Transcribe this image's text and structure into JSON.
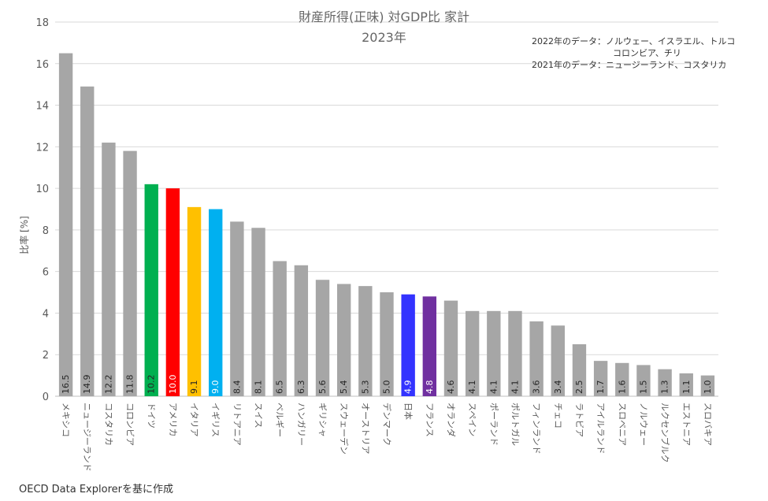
{
  "title_line1": "財産所得(正味) 対GDP比 家計",
  "title_line2": "2023年",
  "notes": {
    "line1_prefix": "2022年のデータ：",
    "line1_countries": "ノルウェー、イスラエル、トルコ",
    "line1_continued": "コロンビア、チリ",
    "line2": "2021年のデータ：ニュージーランド、コスタリカ"
  },
  "source": "OECD Data Explorerを基に作成",
  "chart_data": {
    "type": "bar",
    "ylabel": "比率 [%]",
    "ylim": [
      0,
      18
    ],
    "yticks": [
      0,
      2,
      4,
      6,
      8,
      10,
      12,
      14,
      16,
      18
    ],
    "grid": true,
    "categories": [
      "メキシコ",
      "ニュージーランド",
      "コスタリカ",
      "コロンビア",
      "ドイツ",
      "アメリカ",
      "イタリア",
      "イギリス",
      "リトアニア",
      "スイス",
      "ベルギー",
      "ハンガリー",
      "ギリシャ",
      "スウェーデン",
      "オーストリア",
      "デンマーク",
      "日本",
      "フランス",
      "オランダ",
      "スペイン",
      "ポーランド",
      "ポルトガル",
      "フィンランド",
      "チェコ",
      "ラトビア",
      "アイルランド",
      "スロベニア",
      "ノルウェー",
      "ルクセンブルク",
      "エストニア",
      "スロバキア"
    ],
    "values": [
      16.5,
      14.9,
      12.2,
      11.8,
      10.2,
      10.0,
      9.1,
      9.0,
      8.4,
      8.1,
      6.5,
      6.3,
      5.6,
      5.4,
      5.3,
      5.0,
      4.9,
      4.8,
      4.6,
      4.1,
      4.1,
      4.1,
      3.6,
      3.4,
      2.5,
      1.7,
      1.6,
      1.5,
      1.3,
      1.1,
      1.0
    ],
    "value_labels": [
      "16.5",
      "14.9",
      "12.2",
      "11.8",
      "10.2",
      "10.0",
      "9.1",
      "9.0",
      "8.4",
      "8.1",
      "6.5",
      "6.3",
      "5.6",
      "5.4",
      "5.3",
      "5.0",
      "4.9",
      "4.8",
      "4.6",
      "4.1",
      "4.1",
      "4.1",
      "3.6",
      "3.4",
      "2.5",
      "1.7",
      "1.6",
      "1.5",
      "1.3",
      "1.1",
      "1.0"
    ],
    "colors": {
      "default": "#a6a6a6",
      "ドイツ": "#00b050",
      "アメリカ": "#ff0000",
      "イタリア": "#ffc000",
      "イギリス": "#00b0f0",
      "日本": "#3333ff",
      "フランス": "#7030a0"
    },
    "white_label_categories": [
      "アメリカ",
      "イギリス",
      "日本",
      "フランス"
    ]
  }
}
